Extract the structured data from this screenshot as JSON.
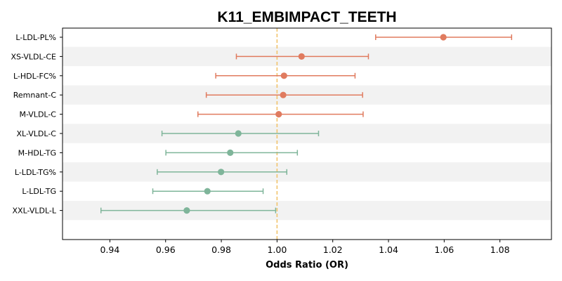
{
  "chart_data": {
    "type": "forest",
    "title": "K11_EMBIMPACT_TEETH",
    "xlabel": "Odds Ratio (OR)",
    "ylabel": "",
    "xlim": [
      0.923,
      1.0985
    ],
    "xticks": [
      "0.94",
      "0.96",
      "0.98",
      "1.00",
      "1.02",
      "1.04",
      "1.06",
      "1.08"
    ],
    "reference_line": 1.0,
    "grid": false,
    "alternating_row_shading": true,
    "colors": {
      "positive": "#e07b5f",
      "negative": "#7fb59a",
      "reference_line": "#f2c46d",
      "row_shade": "#f2f2f2"
    },
    "rows": [
      {
        "label": "L-LDL-PL%",
        "or": 1.0597,
        "lower": 1.0354,
        "upper": 1.0842,
        "direction": "positive"
      },
      {
        "label": "XS-VLDL-CE",
        "or": 1.0088,
        "lower": 0.9854,
        "upper": 1.0328,
        "direction": "positive"
      },
      {
        "label": "L-HDL-FC%",
        "or": 1.0025,
        "lower": 0.978,
        "upper": 1.028,
        "direction": "positive"
      },
      {
        "label": "Remnant-C",
        "or": 1.0022,
        "lower": 0.9746,
        "upper": 1.0307,
        "direction": "positive"
      },
      {
        "label": "M-VLDL-C",
        "or": 1.0006,
        "lower": 0.9716,
        "upper": 1.0309,
        "direction": "positive"
      },
      {
        "label": "XL-VLDL-C",
        "or": 0.9861,
        "lower": 0.9587,
        "upper": 1.0149,
        "direction": "negative"
      },
      {
        "label": "M-HDL-TG",
        "or": 0.9832,
        "lower": 0.9601,
        "upper": 1.0073,
        "direction": "negative"
      },
      {
        "label": "L-LDL-TG%",
        "or": 0.9799,
        "lower": 0.957,
        "upper": 1.0035,
        "direction": "negative"
      },
      {
        "label": "L-LDL-TG",
        "or": 0.975,
        "lower": 0.9554,
        "upper": 0.995,
        "direction": "negative"
      },
      {
        "label": "XXL-VLDL-L",
        "or": 0.9676,
        "lower": 0.9368,
        "upper": 0.9995,
        "direction": "negative"
      }
    ]
  }
}
